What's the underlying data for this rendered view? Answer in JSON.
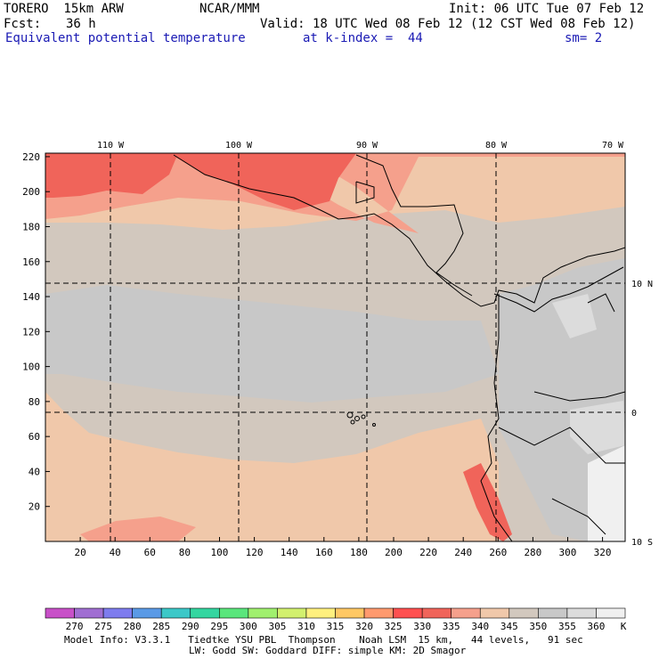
{
  "header": {
    "model": "TORERO  15km ARW",
    "center": "NCAR/MMM",
    "init": "Init: 06 UTC Tue 07 Feb 12",
    "fcst_label": "Fcst:",
    "fcst_value": "36 h",
    "valid": "Valid: 18 UTC Wed 08 Feb 12 (12 CST Wed 08 Feb 12)",
    "field": "Equivalent potential temperature",
    "level": "at k-index =  44",
    "smoothing": "sm= 2"
  },
  "map": {
    "x_ticks": [
      "20",
      "40",
      "60",
      "80",
      "100",
      "120",
      "140",
      "160",
      "180",
      "200",
      "220",
      "240",
      "260",
      "280",
      "300",
      "320"
    ],
    "y_ticks": [
      "20",
      "40",
      "60",
      "80",
      "100",
      "120",
      "140",
      "160",
      "180",
      "200",
      "220"
    ],
    "lon_labels": [
      "110 W",
      "100 W",
      "90 W",
      "80 W",
      "70 W"
    ],
    "lat_labels": [
      "10 N",
      "0",
      "10 S"
    ],
    "island_label": ""
  },
  "legend": {
    "unit": "K",
    "labels": [
      "270",
      "275",
      "280",
      "285",
      "290",
      "295",
      "300",
      "305",
      "310",
      "315",
      "320",
      "325",
      "330",
      "335",
      "340",
      "345",
      "350",
      "355",
      "360"
    ],
    "colors": [
      "#c850c8",
      "#a06ed2",
      "#7e7cee",
      "#5a9ae6",
      "#3cc8c8",
      "#34d6a0",
      "#5ae67c",
      "#a0f06e",
      "#d2f06e",
      "#fff07e",
      "#ffc864",
      "#ff9a6e",
      "#ff5050",
      "#f0645a",
      "#f5a08c",
      "#f0c8aa",
      "#d2c8be",
      "#c8c8c8",
      "#dcdcdc",
      "#f0f0f0"
    ]
  },
  "footer": {
    "line1": "Model Info: V3.3.1   Tiedtke YSU PBL  Thompson    Noah LSM  15 km,   44 levels,   91 sec",
    "line2": "LW: Godd SW: Goddard DIFF: simple KM: 2D Smagor"
  }
}
